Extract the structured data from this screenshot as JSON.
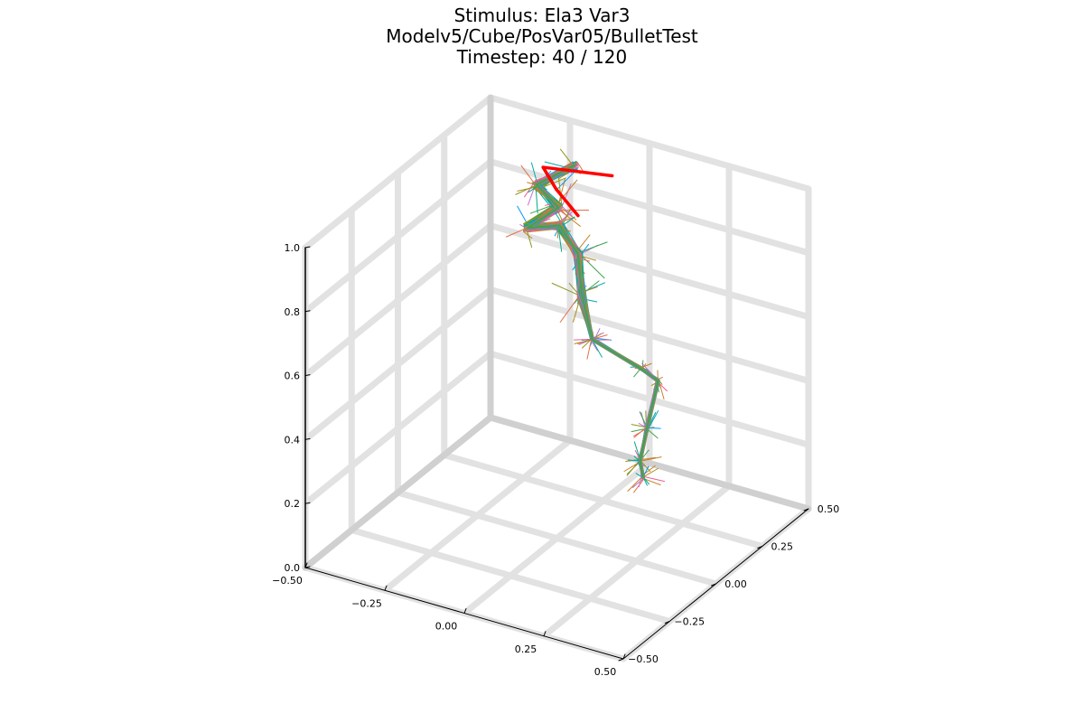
{
  "title_lines": [
    "Stimulus: Ela3 Var3",
    "Modelv5/Cube/PosVar05/BulletTest",
    "Timestep: 40 / 120"
  ],
  "chart_data": {
    "type": "line",
    "projection": "3d",
    "title": "Stimulus: Ela3 Var3\nModelv5/Cube/PosVar05/BulletTest\nTimestep: 40 / 120",
    "xlabel": "",
    "ylabel": "",
    "zlabel": "",
    "xlim": [
      -0.5,
      0.5
    ],
    "ylim": [
      -0.5,
      0.5
    ],
    "zlim": [
      0.0,
      1.0
    ],
    "x_ticks": [
      "−0.50",
      "−0.25",
      "0.00",
      "0.25",
      "0.50"
    ],
    "y_ticks": [
      "−0.50",
      "−0.25",
      "0.00",
      "0.25",
      "0.50"
    ],
    "z_ticks": [
      "0.0",
      "0.2",
      "0.4",
      "0.6",
      "0.8",
      "1.0"
    ],
    "x_tick_values": [
      -0.5,
      -0.25,
      0.0,
      0.25,
      0.5
    ],
    "y_tick_values": [
      -0.5,
      -0.25,
      0.0,
      0.25,
      0.5
    ],
    "z_tick_values": [
      0.0,
      0.2,
      0.4,
      0.6,
      0.8,
      1.0
    ],
    "grid": true,
    "legend": "none",
    "colors": {
      "grid": "#e2e2e2",
      "grid_dark": "#d0d0d0",
      "axis": "#000000",
      "highlight": "#ff0000",
      "palette": [
        "#009af9",
        "#e26f46",
        "#3da44d",
        "#c271d2",
        "#ac8d18",
        "#00a9ad",
        "#ed5e93",
        "#c68225",
        "#00a98d",
        "#8e971d"
      ]
    },
    "series": [
      {
        "role": "ensemble-trajectory",
        "ensemble": true,
        "points": [
          [
            0.3,
            -0.05,
            0.3
          ],
          [
            0.32,
            -0.1,
            0.38
          ],
          [
            0.3,
            -0.03,
            0.44
          ],
          [
            0.26,
            0.1,
            0.52
          ],
          [
            0.24,
            0.04,
            0.58
          ],
          [
            0.1,
            0.02,
            0.64
          ],
          [
            0.02,
            0.1,
            0.72
          ],
          [
            -0.05,
            0.2,
            0.78
          ],
          [
            -0.12,
            0.22,
            0.84
          ],
          [
            -0.15,
            0.1,
            0.88
          ],
          [
            -0.1,
            0.18,
            0.92
          ],
          [
            -0.18,
            0.2,
            0.96
          ],
          [
            -0.12,
            0.3,
            0.99
          ]
        ]
      },
      {
        "role": "highlighted-trajectory",
        "points": [
          [
            -0.05,
            0.2,
            0.9
          ],
          [
            -0.13,
            0.22,
            0.95
          ],
          [
            -0.16,
            0.2,
            1.02
          ],
          [
            -0.03,
            0.35,
            0.96
          ]
        ]
      }
    ]
  }
}
